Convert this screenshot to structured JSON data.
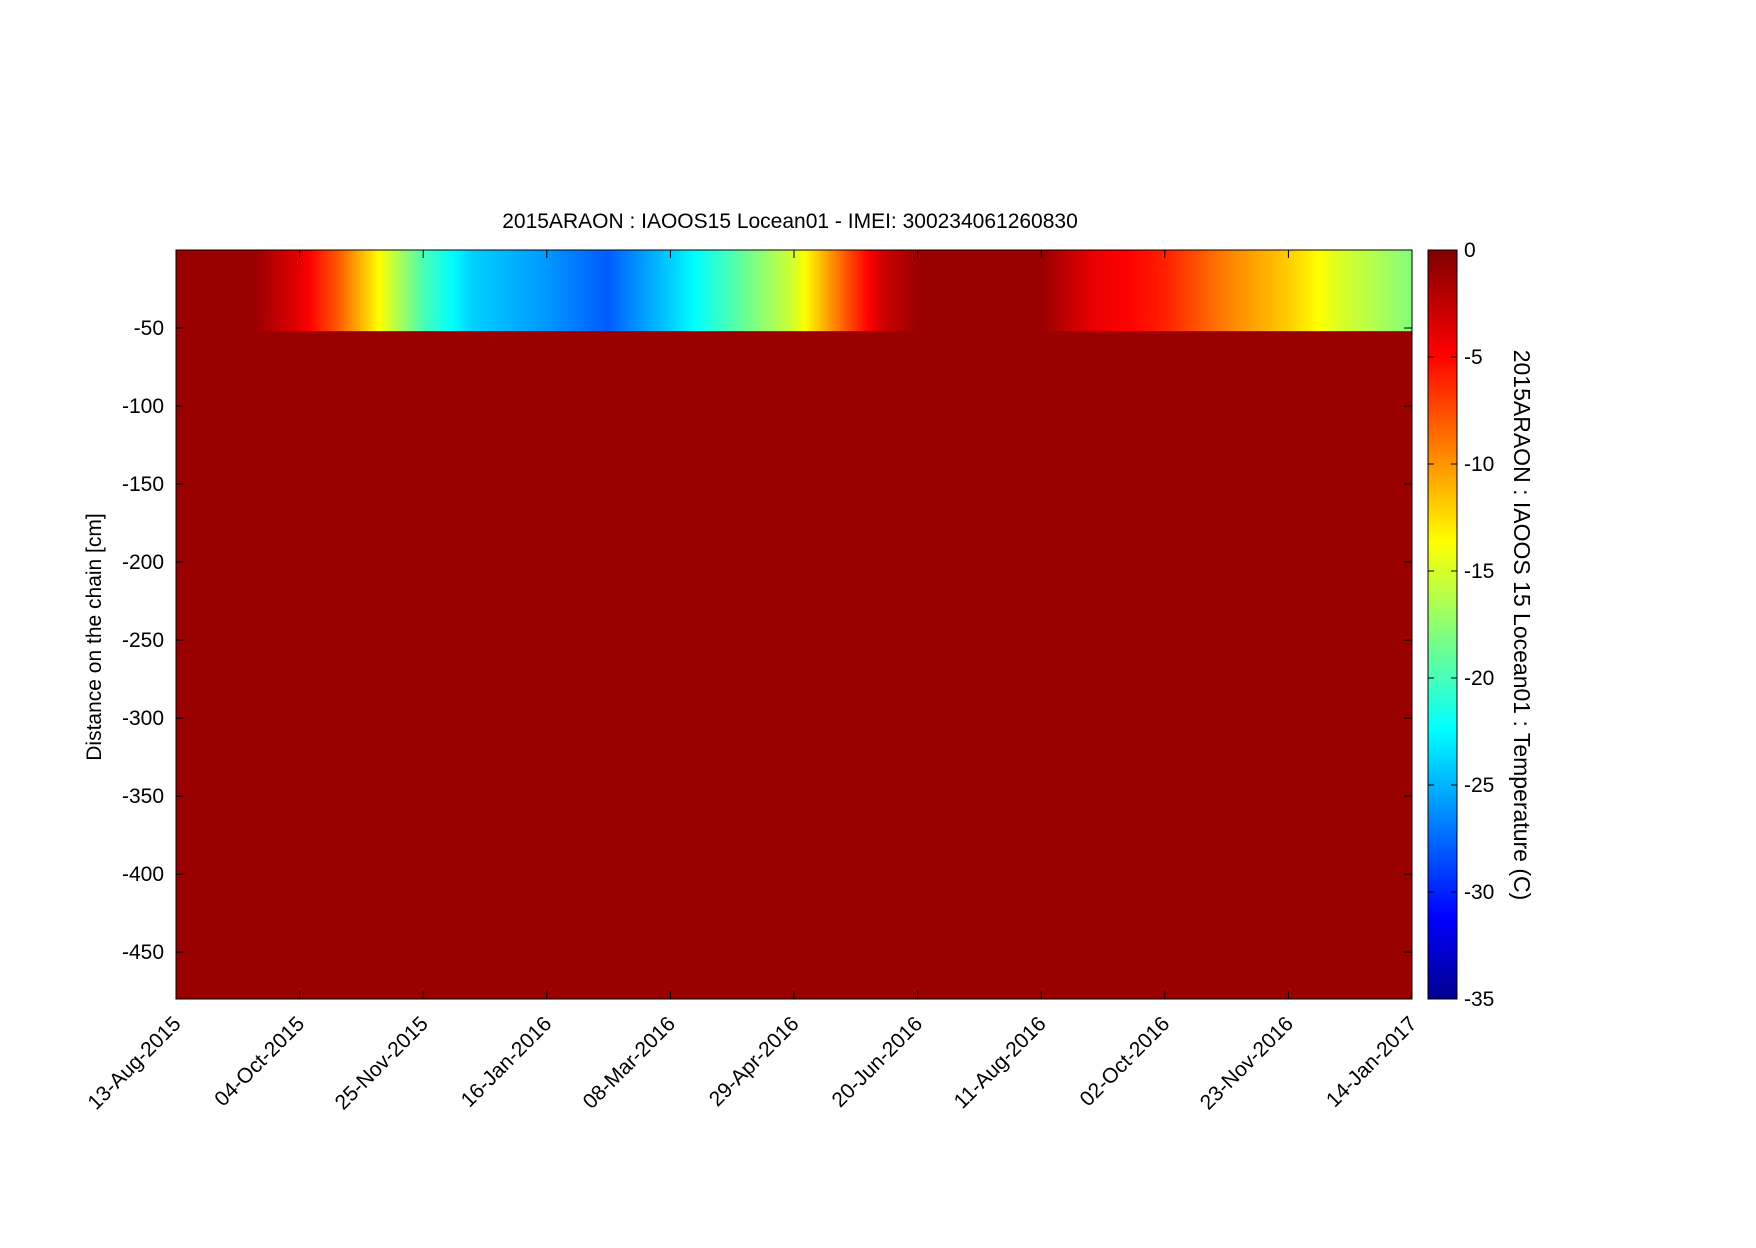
{
  "chart_data": {
    "type": "heatmap",
    "title": "2015ARAON : IAOOS15  Locean01 - IMEI: 300234061260830",
    "ylabel": "Distance on the chain [cm]",
    "xlabel": "",
    "colorbar_label": "2015ARAON : IAOOS 15  Locean01 : Temperature (C)",
    "colormap": "jet",
    "x_range": [
      "2015-08-13",
      "2017-01-14"
    ],
    "x_ticks": [
      "13-Aug-2015",
      "04-Oct-2015",
      "25-Nov-2015",
      "16-Jan-2016",
      "08-Mar-2016",
      "29-Apr-2016",
      "20-Jun-2016",
      "11-Aug-2016",
      "02-Oct-2016",
      "23-Nov-2016",
      "14-Jan-2017"
    ],
    "x_tick_dates": [
      "2015-08-13",
      "2015-10-04",
      "2015-11-25",
      "2016-01-16",
      "2016-03-08",
      "2016-04-29",
      "2016-06-20",
      "2016-08-11",
      "2016-10-02",
      "2016-11-23",
      "2017-01-14"
    ],
    "ylim": [
      -480,
      0
    ],
    "y_ticks": [
      -50,
      -100,
      -150,
      -200,
      -250,
      -300,
      -350,
      -400,
      -450
    ],
    "y_tick_labels": [
      "-50",
      "-100",
      "-150",
      "-200",
      "-250",
      "-300",
      "-350",
      "-400",
      "-450"
    ],
    "clim": [
      -35,
      0
    ],
    "colorbar_ticks": [
      0,
      -5,
      -10,
      -15,
      -20,
      -25,
      -30,
      -35
    ],
    "colorbar_tick_labels": [
      "0",
      "-5",
      "-10",
      "-15",
      "-20",
      "-25",
      "-30",
      "-35"
    ],
    "grid": false,
    "surface_layer_depth_range": [
      0,
      -52
    ],
    "surface_layer_temperature_series": {
      "dates": [
        "2015-08-13",
        "2015-09-15",
        "2015-10-04",
        "2015-10-20",
        "2015-11-10",
        "2015-11-25",
        "2015-12-15",
        "2016-01-16",
        "2016-02-10",
        "2016-03-08",
        "2016-04-01",
        "2016-04-29",
        "2016-05-20",
        "2016-06-05",
        "2016-06-20",
        "2016-07-10",
        "2016-08-11",
        "2016-09-01",
        "2016-10-02",
        "2016-10-25",
        "2016-11-23",
        "2016-12-15",
        "2017-01-14"
      ],
      "temperature": [
        -1,
        -1,
        -4,
        -8,
        -15,
        -20,
        -24,
        -26,
        -28,
        -24,
        -20,
        -15,
        -8,
        -3,
        -1,
        -1,
        -1,
        -4,
        -6,
        -9,
        -12,
        -15,
        -18
      ]
    },
    "deep_layer_temperature": -1
  }
}
